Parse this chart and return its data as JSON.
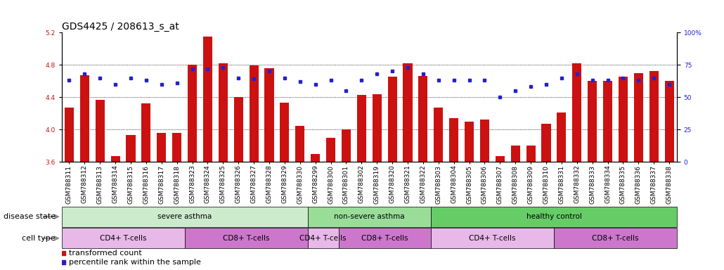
{
  "title": "GDS4425 / 208613_s_at",
  "samples": [
    "GSM788311",
    "GSM788312",
    "GSM788313",
    "GSM788314",
    "GSM788315",
    "GSM788316",
    "GSM788317",
    "GSM788318",
    "GSM788323",
    "GSM788324",
    "GSM788325",
    "GSM788326",
    "GSM788327",
    "GSM788328",
    "GSM788329",
    "GSM788330",
    "GSM788299",
    "GSM788300",
    "GSM788301",
    "GSM788302",
    "GSM788319",
    "GSM788320",
    "GSM788321",
    "GSM788322",
    "GSM788303",
    "GSM788304",
    "GSM788305",
    "GSM788306",
    "GSM788307",
    "GSM788308",
    "GSM788309",
    "GSM788310",
    "GSM788331",
    "GSM788332",
    "GSM788333",
    "GSM788334",
    "GSM788335",
    "GSM788336",
    "GSM788337",
    "GSM788338"
  ],
  "bar_values": [
    4.27,
    4.67,
    4.37,
    3.67,
    3.93,
    4.32,
    3.96,
    3.96,
    4.8,
    5.15,
    4.82,
    4.4,
    4.79,
    4.76,
    4.33,
    4.05,
    3.7,
    3.9,
    4.0,
    4.43,
    4.44,
    4.65,
    4.82,
    4.66,
    4.27,
    4.14,
    4.1,
    4.12,
    3.67,
    3.8,
    3.8,
    4.07,
    4.21,
    4.82,
    4.6,
    4.6,
    4.65,
    4.7,
    4.72,
    4.6
  ],
  "percentile_values": [
    63,
    68,
    65,
    60,
    65,
    63,
    60,
    61,
    72,
    72,
    73,
    65,
    64,
    70,
    65,
    62,
    60,
    63,
    55,
    63,
    68,
    70,
    73,
    68,
    63,
    63,
    63,
    63,
    50,
    55,
    58,
    60,
    65,
    68,
    63,
    63,
    65,
    63,
    65,
    60
  ],
  "ylim_left": [
    3.6,
    5.2
  ],
  "ylim_right": [
    0,
    100
  ],
  "yticks_left": [
    3.6,
    4.0,
    4.4,
    4.8,
    5.2
  ],
  "yticks_right": [
    0,
    25,
    50,
    75,
    100
  ],
  "ytick_right_labels": [
    "0",
    "25",
    "50",
    "75",
    "100%"
  ],
  "bar_color": "#cc1111",
  "dot_color": "#2222cc",
  "bar_bottom": 3.6,
  "gridline_ticks": [
    4.0,
    4.4,
    4.8
  ],
  "disease_state_groups": [
    {
      "label": "severe asthma",
      "start": 0,
      "end": 16,
      "color": "#cceacc"
    },
    {
      "label": "non-severe asthma",
      "start": 16,
      "end": 24,
      "color": "#99dd99"
    },
    {
      "label": "healthy control",
      "start": 24,
      "end": 40,
      "color": "#66cc66"
    }
  ],
  "cell_type_groups": [
    {
      "label": "CD4+ T-cells",
      "start": 0,
      "end": 8,
      "color": "#e8b8e8"
    },
    {
      "label": "CD8+ T-cells",
      "start": 8,
      "end": 16,
      "color": "#cc77cc"
    },
    {
      "label": "CD4+ T-cells",
      "start": 16,
      "end": 18,
      "color": "#e8b8e8"
    },
    {
      "label": "CD8+ T-cells",
      "start": 18,
      "end": 24,
      "color": "#cc77cc"
    },
    {
      "label": "CD4+ T-cells",
      "start": 24,
      "end": 32,
      "color": "#e8b8e8"
    },
    {
      "label": "CD8+ T-cells",
      "start": 32,
      "end": 40,
      "color": "#cc77cc"
    }
  ],
  "disease_state_label": "disease state",
  "cell_type_label": "cell type",
  "legend_bar": "transformed count",
  "legend_dot": "percentile rank within the sample",
  "title_fontsize": 10,
  "tick_fontsize": 6.5,
  "label_fontsize": 8,
  "group_label_fontsize": 7.5
}
